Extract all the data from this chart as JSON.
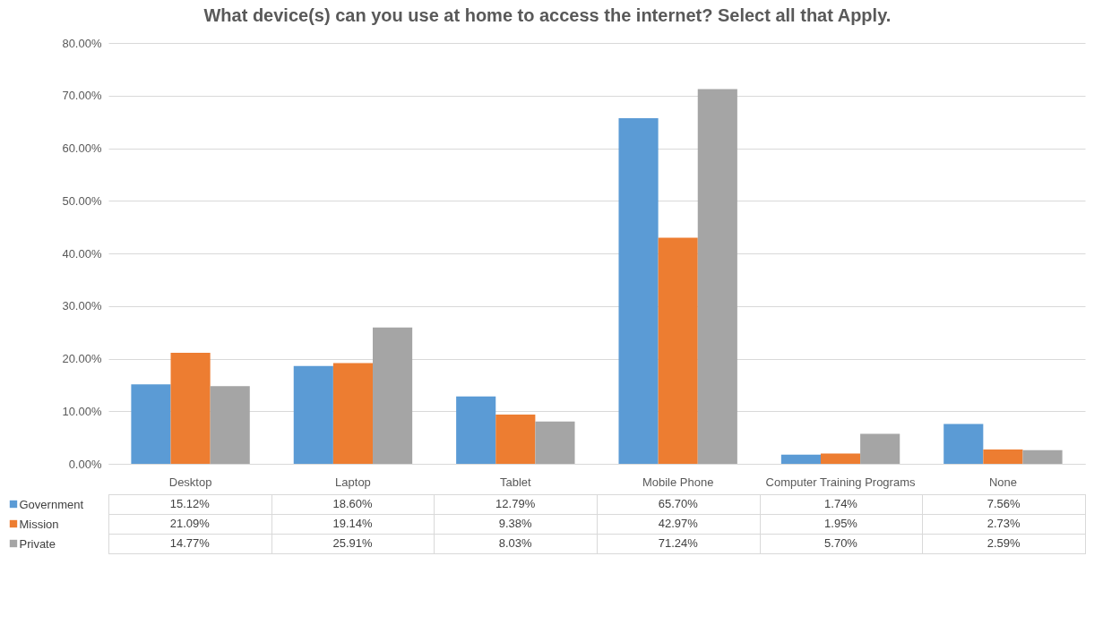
{
  "chart_data": {
    "type": "bar",
    "title": "What device(s) can you use at home to access the internet? Select all that Apply.",
    "categories": [
      "Desktop",
      "Laptop",
      "Tablet",
      "Mobile Phone",
      "Computer Training Programs",
      "None"
    ],
    "series": [
      {
        "name": "Government",
        "color": "#5b9bd5",
        "values": [
          15.12,
          18.6,
          12.79,
          65.7,
          1.74,
          7.56
        ],
        "value_labels": [
          "15.12%",
          "18.60%",
          "12.79%",
          "65.70%",
          "1.74%",
          "7.56%"
        ]
      },
      {
        "name": "Mission",
        "color": "#ed7d31",
        "values": [
          21.09,
          19.14,
          9.38,
          42.97,
          1.95,
          2.73
        ],
        "value_labels": [
          "21.09%",
          "19.14%",
          "9.38%",
          "42.97%",
          "1.95%",
          "2.73%"
        ]
      },
      {
        "name": "Private",
        "color": "#a5a5a5",
        "values": [
          14.77,
          25.91,
          8.03,
          71.24,
          5.7,
          2.59
        ],
        "value_labels": [
          "14.77%",
          "25.91%",
          "8.03%",
          "71.24%",
          "5.70%",
          "2.59%"
        ]
      }
    ],
    "ylim": [
      0,
      80
    ],
    "yticks": [
      {
        "value": 0,
        "label": "0.00%"
      },
      {
        "value": 10,
        "label": "10.00%"
      },
      {
        "value": 20,
        "label": "20.00%"
      },
      {
        "value": 30,
        "label": "30.00%"
      },
      {
        "value": 40,
        "label": "40.00%"
      },
      {
        "value": 50,
        "label": "50.00%"
      },
      {
        "value": 60,
        "label": "60.00%"
      },
      {
        "value": 70,
        "label": "70.00%"
      },
      {
        "value": 80,
        "label": "80.00%"
      }
    ],
    "grid": "y",
    "legend": "bottom"
  }
}
